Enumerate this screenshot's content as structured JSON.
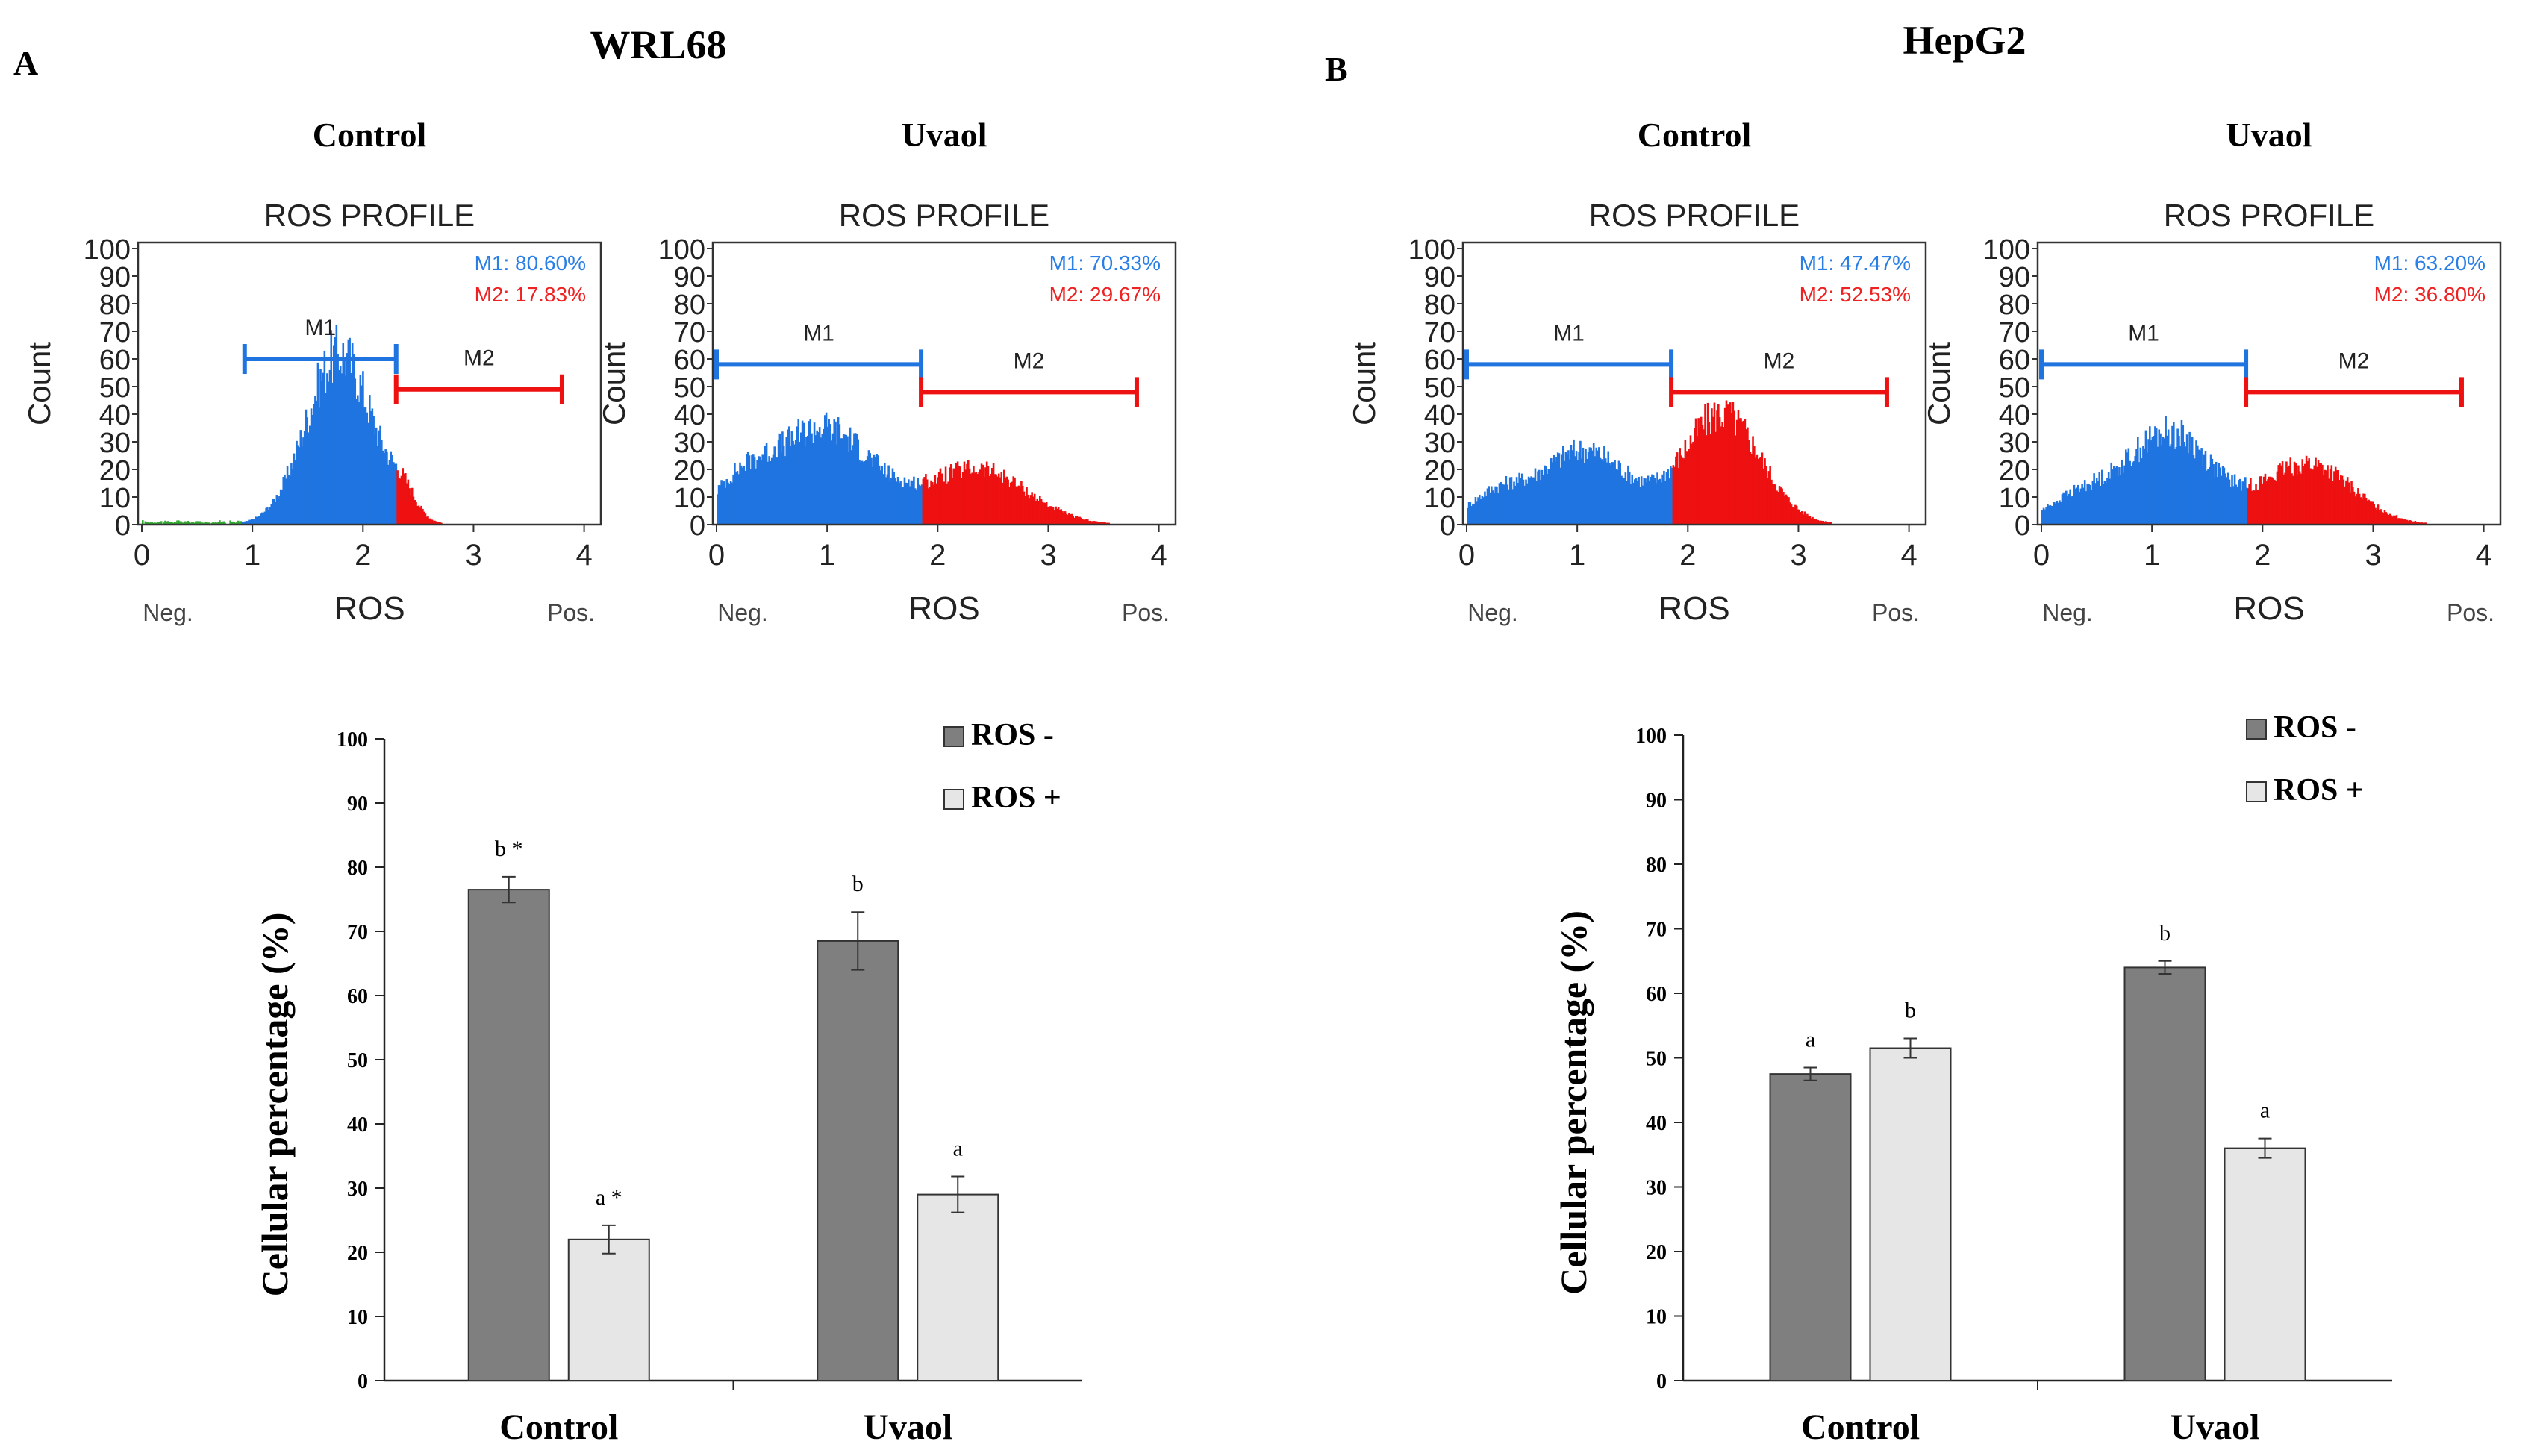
{
  "panels": [
    {
      "letter": "A",
      "cell_line": "WRL68",
      "histograms": [
        {
          "group": "Control",
          "title": "ROS PROFILE",
          "m1_label": "M1",
          "m2_label": "M2",
          "m1_pct": "M1: 80.60%",
          "m2_pct": "M2: 17.83%",
          "ylabel": "Count",
          "xlabel": "ROS",
          "neg": "Neg.",
          "pos": "Pos.",
          "xticks": [
            "0",
            "1",
            "2",
            "3",
            "4"
          ],
          "yticks": [
            "0",
            "10",
            "20",
            "30",
            "40",
            "50",
            "60",
            "70",
            "80",
            "90",
            "100"
          ],
          "m1_range": [
            0.93,
            2.3
          ],
          "m2_range": [
            2.3,
            3.8
          ],
          "m1_bar_y": 60,
          "m2_bar_y": 49,
          "split": 2.3,
          "peaks": [
            {
              "mu": 1.78,
              "sigma": 0.3,
              "amp": 62
            },
            {
              "mu": 2.35,
              "sigma": 0.12,
              "amp": 8
            }
          ],
          "low_tail": true
        },
        {
          "group": "Uvaol",
          "title": "ROS PROFILE",
          "m1_label": "M1",
          "m2_label": "M2",
          "m1_pct": "M1: 70.33%",
          "m2_pct": "M2: 29.67%",
          "ylabel": "Count",
          "xlabel": "ROS",
          "neg": "Neg.",
          "pos": "Pos.",
          "xticks": [
            "0",
            "1",
            "2",
            "3",
            "4"
          ],
          "yticks": [
            "0",
            "10",
            "20",
            "30",
            "40",
            "50",
            "60",
            "70",
            "80",
            "90",
            "100"
          ],
          "m1_range": [
            0.0,
            1.85
          ],
          "m2_range": [
            1.85,
            3.8
          ],
          "m1_bar_y": 58,
          "m2_bar_y": 48,
          "split": 1.85,
          "peaks": [
            {
              "mu": 0.95,
              "sigma": 0.45,
              "amp": 35
            },
            {
              "mu": 0.2,
              "sigma": 0.25,
              "amp": 12
            },
            {
              "mu": 2.35,
              "sigma": 0.45,
              "amp": 20
            }
          ],
          "low_tail": false
        }
      ],
      "bar_chart": {
        "type": "bar",
        "categories": [
          "Control",
          "Uvaol"
        ],
        "series": [
          {
            "name": "ROS -",
            "color": "#7f7f7f",
            "values": [
              76.5,
              68.5
            ],
            "errors": [
              2.0,
              4.5
            ],
            "labels": [
              "b *",
              "b"
            ]
          },
          {
            "name": "ROS +",
            "color": "#e6e6e6",
            "values": [
              22.0,
              29.0
            ],
            "errors": [
              2.2,
              2.8
            ],
            "labels": [
              "a *",
              "a"
            ]
          }
        ],
        "ylabel": "Cellular percentage (%)",
        "ylim": [
          0,
          100
        ],
        "yticks": [
          "0",
          "10",
          "20",
          "30",
          "40",
          "50",
          "60",
          "70",
          "80",
          "90",
          "100"
        ]
      }
    },
    {
      "letter": "B",
      "cell_line": "HepG2",
      "histograms": [
        {
          "group": "Control",
          "title": "ROS PROFILE",
          "m1_label": "M1",
          "m2_label": "M2",
          "m1_pct": "M1: 47.47%",
          "m2_pct": "M2: 52.53%",
          "ylabel": "Count",
          "xlabel": "ROS",
          "neg": "Neg.",
          "pos": "Pos.",
          "xticks": [
            "0",
            "1",
            "2",
            "3",
            "4"
          ],
          "yticks": [
            "0",
            "10",
            "20",
            "30",
            "40",
            "50",
            "60",
            "70",
            "80",
            "90",
            "100"
          ],
          "m1_range": [
            0.0,
            1.85
          ],
          "m2_range": [
            1.85,
            3.8
          ],
          "m1_bar_y": 58,
          "m2_bar_y": 48,
          "split": 1.85,
          "peaks": [
            {
              "mu": 1.05,
              "sigma": 0.4,
              "amp": 27
            },
            {
              "mu": 0.25,
              "sigma": 0.25,
              "amp": 10
            },
            {
              "mu": 2.3,
              "sigma": 0.35,
              "amp": 40
            }
          ],
          "low_tail": false
        },
        {
          "group": "Uvaol",
          "title": "ROS PROFILE",
          "m1_label": "M1",
          "m2_label": "M2",
          "m1_pct": "M1: 63.20%",
          "m2_pct": "M2: 36.80%",
          "ylabel": "Count",
          "xlabel": "ROS",
          "neg": "Neg.",
          "pos": "Pos.",
          "xticks": [
            "0",
            "1",
            "2",
            "3",
            "4"
          ],
          "yticks": [
            "0",
            "10",
            "20",
            "30",
            "40",
            "50",
            "60",
            "70",
            "80",
            "90",
            "100"
          ],
          "m1_range": [
            0.0,
            1.85
          ],
          "m2_range": [
            1.85,
            3.8
          ],
          "m1_bar_y": 58,
          "m2_bar_y": 48,
          "split": 1.85,
          "peaks": [
            {
              "mu": 1.15,
              "sigma": 0.38,
              "amp": 33
            },
            {
              "mu": 0.35,
              "sigma": 0.3,
              "amp": 10
            },
            {
              "mu": 2.4,
              "sigma": 0.4,
              "amp": 22
            }
          ],
          "low_tail": false
        }
      ],
      "bar_chart": {
        "type": "bar",
        "categories": [
          "Control",
          "Uvaol"
        ],
        "series": [
          {
            "name": "ROS -",
            "color": "#7f7f7f",
            "values": [
              47.5,
              64.0
            ],
            "errors": [
              1.0,
              1.0
            ],
            "labels": [
              "a",
              "b"
            ]
          },
          {
            "name": "ROS +",
            "color": "#e6e6e6",
            "values": [
              51.5,
              36.0
            ],
            "errors": [
              1.5,
              1.5
            ],
            "labels": [
              "b",
              "a"
            ]
          }
        ],
        "ylabel": "Cellular percentage (%)",
        "ylim": [
          0,
          100
        ],
        "yticks": [
          "0",
          "10",
          "20",
          "30",
          "40",
          "50",
          "60",
          "70",
          "80",
          "90",
          "100"
        ]
      }
    }
  ],
  "colors": {
    "m1": "#1f74e0",
    "m2": "#ee1111",
    "m1_text": "#2a7fe6",
    "m2_text": "#ee2222"
  }
}
